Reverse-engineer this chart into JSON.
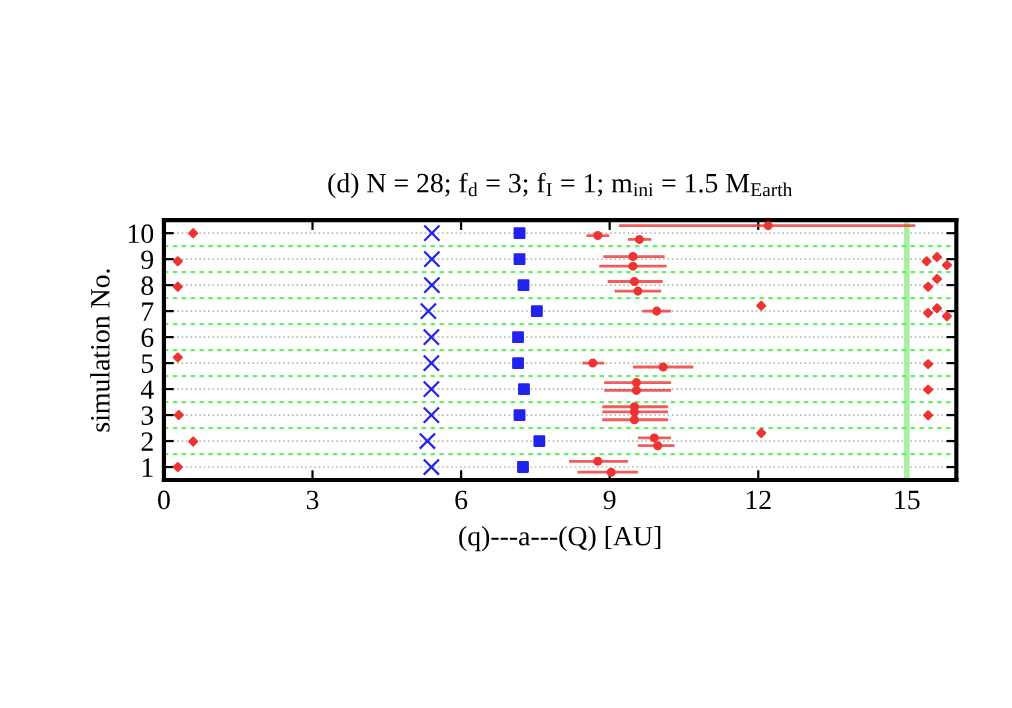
{
  "chart_data": {
    "type": "scatter",
    "title": "(d) N = 28; f$_{d}$ = 3; f$_{I}$ = 1; m$_{ini}$ = 1.5 M$_{Earth}$",
    "xlabel": "(q)---a---(Q) [AU]",
    "ylabel": "simulation No.",
    "xlim": [
      0,
      16
    ],
    "xticks": [
      0,
      3,
      6,
      9,
      12,
      15
    ],
    "ylim": [
      0.5,
      10.5
    ],
    "yticks": [
      1,
      2,
      3,
      4,
      5,
      6,
      7,
      8,
      9,
      10
    ],
    "grid": "y",
    "legend": false,
    "ref_lines": [
      {
        "axis": "x",
        "value": 15,
        "label": null,
        "color": "#a8f0a0",
        "line_style": "solid"
      },
      {
        "axis": "y",
        "value": 1.5,
        "label": null,
        "color": "#66ee66",
        "line_style": "dashed"
      },
      {
        "axis": "y",
        "value": 2.5,
        "label": null,
        "color": "#66ee66",
        "line_style": "dashed"
      },
      {
        "axis": "y",
        "value": 3.5,
        "label": null,
        "color": "#66ee66",
        "line_style": "dashed"
      },
      {
        "axis": "y",
        "value": 4.5,
        "label": null,
        "color": "#66ee66",
        "line_style": "dashed"
      },
      {
        "axis": "y",
        "value": 5.5,
        "label": null,
        "color": "#66ee66",
        "line_style": "dashed"
      },
      {
        "axis": "y",
        "value": 6.5,
        "label": null,
        "color": "#66ee66",
        "line_style": "dashed"
      },
      {
        "axis": "y",
        "value": 7.5,
        "label": null,
        "color": "#66ee66",
        "line_style": "dashed"
      },
      {
        "axis": "y",
        "value": 8.5,
        "label": null,
        "color": "#66ee66",
        "line_style": "dashed"
      },
      {
        "axis": "y",
        "value": 9.5,
        "label": null,
        "color": "#66ee66",
        "line_style": "dashed"
      }
    ],
    "series": [
      {
        "marker": "cross",
        "color": "#2222ee",
        "x": [
          5.4,
          5.32,
          5.4,
          5.4,
          5.4,
          5.4,
          5.34,
          5.41,
          5.41,
          5.41
        ],
        "values": [
          1,
          2,
          3,
          4,
          5,
          6,
          7,
          8,
          9,
          10
        ]
      },
      {
        "marker": "square",
        "color": "#2222ee",
        "x": [
          7.25,
          7.58,
          7.18,
          7.27,
          7.15,
          7.15,
          7.53,
          7.26,
          7.18,
          7.18
        ],
        "values": [
          1,
          2,
          3,
          4,
          5,
          6,
          7,
          8,
          9,
          10
        ]
      },
      {
        "marker": "circle",
        "color": "#ee3333",
        "x": [
          8.76,
          9.03,
          9.9,
          9.97,
          9.5,
          9.5,
          9.5,
          9.54,
          9.54,
          8.66,
          10.08,
          9.95,
          9.5,
          9.57,
          9.47,
          9.47,
          8.76,
          9.6,
          12.2
        ],
        "values": [
          1.22,
          0.8,
          2.12,
          1.82,
          3.32,
          3.12,
          2.82,
          4.25,
          3.95,
          5.0,
          4.85,
          7.0,
          8.14,
          7.77,
          9.1,
          8.73,
          9.91,
          9.76,
          10.29
        ],
        "xerrors": [
          [
            8.18,
            9.37
          ],
          [
            8.35,
            9.57
          ],
          [
            9.57,
            10.24
          ],
          [
            9.57,
            10.31
          ],
          [
            8.85,
            10.18
          ],
          [
            8.85,
            10.18
          ],
          [
            8.85,
            10.18
          ],
          [
            8.89,
            10.24
          ],
          [
            8.89,
            10.24
          ],
          [
            8.45,
            8.89
          ],
          [
            9.47,
            10.69
          ],
          [
            9.66,
            10.24
          ],
          [
            8.96,
            10.07
          ],
          [
            9.1,
            10.04
          ],
          [
            8.87,
            10.11
          ],
          [
            8.79,
            10.15
          ],
          [
            8.53,
            8.99
          ],
          [
            9.37,
            9.84
          ],
          [
            9.19,
            15.17
          ]
        ]
      },
      {
        "marker": "diamond",
        "color": "#ee3333",
        "x": [
          0.28,
          0.59,
          0.3,
          0.28,
          0.28,
          0.28,
          0.59,
          12.06,
          12.06,
          15.4,
          15.61,
          15.81,
          15.61,
          15.43,
          15.61,
          15.43,
          15.81,
          15.43,
          15.43,
          15.43
        ],
        "values": [
          1.0,
          1.98,
          3.0,
          5.22,
          7.94,
          8.92,
          10.0,
          2.31,
          7.21,
          8.92,
          9.08,
          8.77,
          8.24,
          7.94,
          7.11,
          6.93,
          6.8,
          4.96,
          3.98,
          2.99
        ]
      }
    ]
  }
}
